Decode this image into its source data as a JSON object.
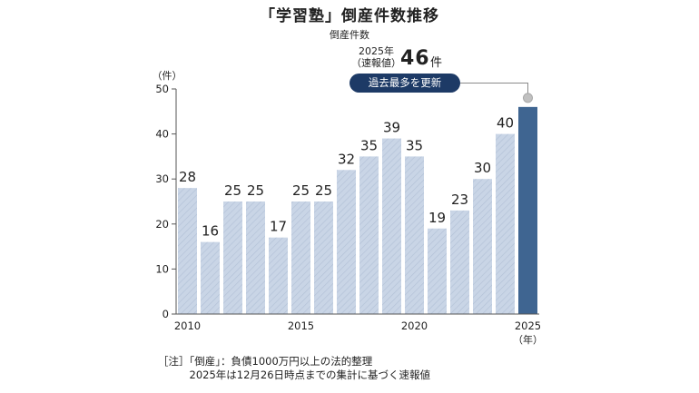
{
  "chart_data": {
    "type": "bar",
    "title": "「学習塾」倒産件数推移",
    "subtitle": "倒産件数",
    "y_unit_label": "（件）",
    "x_unit_label": "（年）",
    "ylim": [
      0,
      50
    ],
    "yticks": [
      0,
      10,
      20,
      30,
      40,
      50
    ],
    "categories": [
      "2010",
      "2011",
      "2012",
      "2013",
      "2014",
      "2015",
      "2016",
      "2017",
      "2018",
      "2019",
      "2020",
      "2021",
      "2022",
      "2023",
      "2024",
      "2025"
    ],
    "x_tick_labels": [
      "2010",
      "2015",
      "2020",
      "2025"
    ],
    "values": [
      28,
      16,
      25,
      25,
      17,
      25,
      25,
      32,
      35,
      39,
      35,
      19,
      23,
      30,
      40,
      46
    ],
    "data_labels_shown": [
      true,
      true,
      true,
      true,
      true,
      true,
      true,
      true,
      true,
      true,
      true,
      true,
      true,
      true,
      true,
      false
    ],
    "grid": false,
    "colors": {
      "bar": "#c9d5e6",
      "bar_hatch": "#b1c0d6",
      "highlight_bar": "#3f6591",
      "axis": "#555555",
      "badge": "#1d3a66",
      "leader_line": "#8a8a8a",
      "leader_dot": "#c0c0c0"
    }
  },
  "callout": {
    "note": "2025年\n（速報値）",
    "value": "46",
    "unit": "件",
    "badge": "過去最多を更新"
  },
  "footnote": "［注］「倒産」：負債1000万円以上の法的整理\n　　　2025年は12月26日時点までの集計に基づく速報値"
}
